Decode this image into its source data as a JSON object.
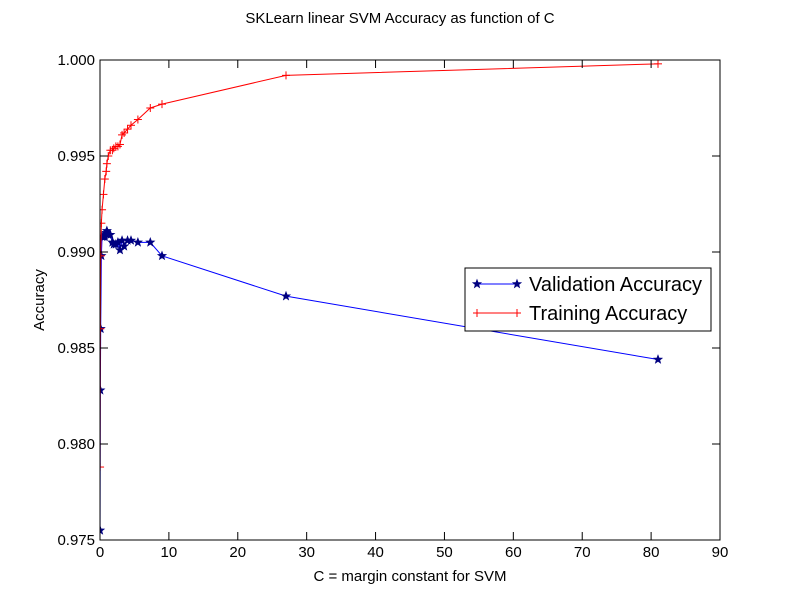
{
  "chart_data": {
    "type": "line",
    "title": "SKLearn linear SVM Accuracy as function of C",
    "xlabel": "C = margin constant for SVM",
    "ylabel": "Accuracy",
    "xlim": [
      0,
      90
    ],
    "ylim": [
      0.975,
      1.0
    ],
    "xticks": [
      0,
      10,
      20,
      30,
      40,
      50,
      60,
      70,
      80,
      90
    ],
    "yticks": [
      0.975,
      0.98,
      0.985,
      0.99,
      0.995,
      1.0
    ],
    "xtick_labels": [
      "0",
      "10",
      "20",
      "30",
      "40",
      "50",
      "60",
      "70",
      "80",
      "90"
    ],
    "ytick_labels": [
      "0.975",
      "0.980",
      "0.985",
      "0.990",
      "0.995",
      "1.000"
    ],
    "grid": false,
    "legend_position": "right",
    "series": [
      {
        "name": "Validation Accuracy",
        "color": "#0000ff",
        "marker": "star",
        "marker_color": "#000080",
        "x": [
          0.01,
          0.05,
          0.1,
          0.2,
          0.3,
          0.5,
          0.7,
          0.9,
          1.0,
          1.2,
          1.5,
          1.8,
          2.0,
          2.3,
          2.6,
          2.9,
          3.2,
          3.5,
          4.0,
          4.5,
          5.5,
          7.3,
          9.0,
          27.0,
          81.0
        ],
        "y": [
          0.9755,
          0.9828,
          0.986,
          0.9898,
          0.9908,
          0.9908,
          0.9908,
          0.991,
          0.9911,
          0.9909,
          0.9909,
          0.9905,
          0.9904,
          0.9904,
          0.9905,
          0.9901,
          0.9906,
          0.9903,
          0.9906,
          0.9906,
          0.9905,
          0.9905,
          0.9898,
          0.9877,
          0.9844
        ]
      },
      {
        "name": "Training Accuracy",
        "color": "#ff0000",
        "marker": "plus",
        "marker_color": "#ff0000",
        "x": [
          0.01,
          0.05,
          0.1,
          0.2,
          0.3,
          0.5,
          0.7,
          0.9,
          1.0,
          1.2,
          1.5,
          1.8,
          2.0,
          2.3,
          2.6,
          2.9,
          3.2,
          3.5,
          4.0,
          4.5,
          5.5,
          7.3,
          9.0,
          27.0,
          81.0
        ],
        "y": [
          0.9788,
          0.986,
          0.9898,
          0.9915,
          0.9922,
          0.993,
          0.9938,
          0.9942,
          0.9946,
          0.995,
          0.9953,
          0.9953,
          0.9954,
          0.9955,
          0.9955,
          0.9956,
          0.9961,
          0.9962,
          0.9964,
          0.9966,
          0.9969,
          0.9975,
          0.9977,
          0.9992,
          0.9998
        ]
      }
    ]
  }
}
